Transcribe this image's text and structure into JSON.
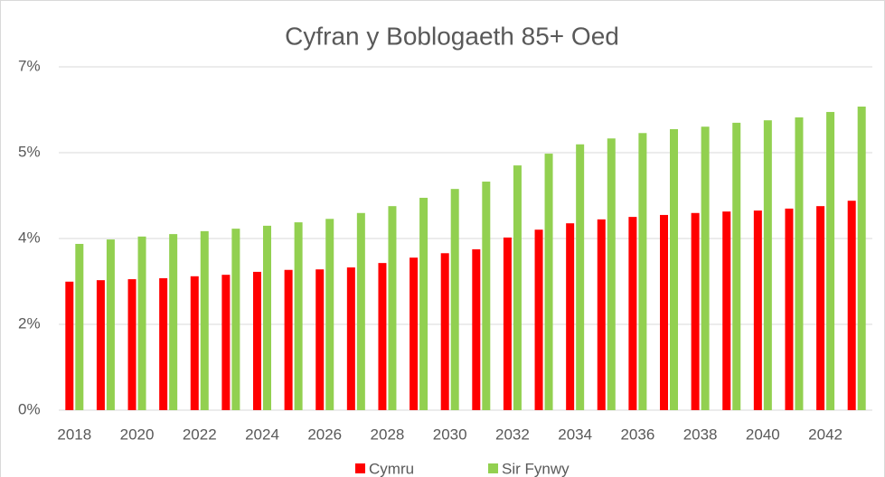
{
  "chart_data": {
    "type": "bar",
    "title": "Cyfran y Boblogaeth 85+ Oed",
    "categories": [
      "2018",
      null,
      "2020",
      null,
      "2022",
      null,
      "2024",
      null,
      "2026",
      null,
      "2028",
      null,
      "2030",
      null,
      "2032",
      null,
      "2034",
      null,
      "2036",
      null,
      "2038",
      null,
      "2040",
      null,
      "2042",
      null
    ],
    "series": [
      {
        "name": "Cymru",
        "color": "#ff0000",
        "values": [
          2.62,
          2.65,
          2.67,
          2.69,
          2.73,
          2.76,
          2.82,
          2.86,
          2.87,
          2.91,
          3.0,
          3.11,
          3.2,
          3.28,
          3.52,
          3.68,
          3.81,
          3.89,
          3.94,
          3.98,
          4.02,
          4.05,
          4.07,
          4.11,
          4.16,
          4.27
        ]
      },
      {
        "name": "Sir Fynwy",
        "color": "#92d050",
        "values": [
          3.39,
          3.48,
          3.54,
          3.59,
          3.65,
          3.7,
          3.76,
          3.83,
          3.9,
          4.02,
          4.16,
          4.33,
          4.51,
          4.66,
          4.99,
          5.23,
          5.42,
          5.54,
          5.65,
          5.73,
          5.78,
          5.86,
          5.91,
          5.97,
          6.08,
          6.19
        ]
      }
    ],
    "ylim": [
      0,
      7
    ],
    "yticks": [
      {
        "value": 0,
        "label": "0%"
      },
      {
        "value": 1.75,
        "label": "2%"
      },
      {
        "value": 3.5,
        "label": "4%"
      },
      {
        "value": 5.25,
        "label": "5%"
      },
      {
        "value": 7,
        "label": "7%"
      }
    ],
    "grid": true,
    "legend": "bottom"
  }
}
